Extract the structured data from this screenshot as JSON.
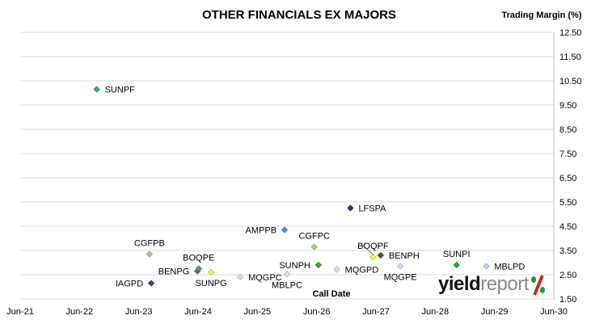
{
  "chart_data": {
    "type": "scatter",
    "title": "OTHER FINANCIALS EX MAJORS",
    "ylabel": "Trading Margin (%)",
    "xlabel": "Call Date",
    "x_ticks": [
      "Jun-21",
      "Jun-22",
      "Jun-23",
      "Jun-24",
      "Jun-25",
      "Jun-26",
      "Jun-27",
      "Jun-28",
      "Jun-29",
      "Jun-30"
    ],
    "y_ticks": [
      "1.50",
      "2.50",
      "3.50",
      "4.50",
      "5.50",
      "6.50",
      "7.50",
      "8.50",
      "9.50",
      "10.50",
      "11.50",
      "12.50"
    ],
    "xlim": [
      2021.5,
      2030.5
    ],
    "ylim": [
      1.5,
      12.5
    ],
    "grid": "horizontal",
    "points": [
      {
        "name": "SUNPF",
        "x": 2022.79,
        "y": 10.15,
        "color": "#2bb673",
        "outline": "#1e8c56",
        "label_pos": "right"
      },
      {
        "name": "CGFPB",
        "x": 2023.68,
        "y": 3.35,
        "color": "#a9cf86",
        "outline": "#7ea95c",
        "label_pos": "above"
      },
      {
        "name": "IAGPD",
        "x": 2023.71,
        "y": 2.15,
        "color": "#7030a0",
        "outline": "#55207d",
        "label_pos": "left"
      },
      {
        "name": "BENPG",
        "x": 2024.49,
        "y": 2.65,
        "color": "#2e8b2e",
        "outline": "#1f6b1f",
        "label_pos": "left"
      },
      {
        "name": "BOQPE",
        "x": 2024.51,
        "y": 2.75,
        "color": "#5aa469",
        "outline": "#3f7e4c",
        "label_pos": "above"
      },
      {
        "name": "SUNPG",
        "x": 2024.72,
        "y": 2.6,
        "color": "#fff36b",
        "outline": "#c9b300",
        "label_pos": "below"
      },
      {
        "name": "MQGPC",
        "x": 2025.21,
        "y": 2.4,
        "color": "#d7e2f2",
        "outline": "#9fb3d4",
        "label_pos": "right"
      },
      {
        "name": "AMPPB",
        "x": 2025.96,
        "y": 4.35,
        "color": "#5b8fd0",
        "outline": "#3f6eaa",
        "label_pos": "left"
      },
      {
        "name": "MBLPC",
        "x": 2026.0,
        "y": 2.52,
        "color": "#d7e2f2",
        "outline": "#9fb3d4",
        "label_pos": "below"
      },
      {
        "name": "CGFPC",
        "x": 2026.46,
        "y": 3.65,
        "color": "#a9cf86",
        "outline": "#7ea95c",
        "label_pos": "above"
      },
      {
        "name": "SUNPH",
        "x": 2026.53,
        "y": 2.9,
        "color": "#4f9a3a",
        "outline": "#3a7329",
        "label_pos": "left"
      },
      {
        "name": "MQGPD",
        "x": 2026.84,
        "y": 2.72,
        "color": "#d7e2f2",
        "outline": "#9fb3d4",
        "label_pos": "right"
      },
      {
        "name": "LFSPA",
        "x": 2027.07,
        "y": 5.25,
        "color": "#1f3a8a",
        "outline": "#142863",
        "label_pos": "right"
      },
      {
        "name": "BOQPF",
        "x": 2027.45,
        "y": 3.23,
        "color": "#fff36b",
        "outline": "#c9b300",
        "label_pos": "above"
      },
      {
        "name": "BENPH",
        "x": 2027.58,
        "y": 3.3,
        "color": "#6b4a3a",
        "outline": "#4a3226",
        "label_pos": "right"
      },
      {
        "name": "MQGPE",
        "x": 2027.91,
        "y": 2.85,
        "color": "#d7e2f2",
        "outline": "#9fb3d4",
        "label_pos": "below"
      },
      {
        "name": "SUNPI",
        "x": 2028.86,
        "y": 2.9,
        "color": "#22b022",
        "outline": "#158a15",
        "label_pos": "above"
      },
      {
        "name": "MBLPD",
        "x": 2029.36,
        "y": 2.85,
        "color": "#c7d7ef",
        "outline": "#8ea6cf",
        "label_pos": "right"
      }
    ],
    "logo_text": "yieldreport"
  },
  "colors": {
    "grid": "#d9d9d9",
    "axis": "#bfbfbf",
    "text": "#000000"
  }
}
